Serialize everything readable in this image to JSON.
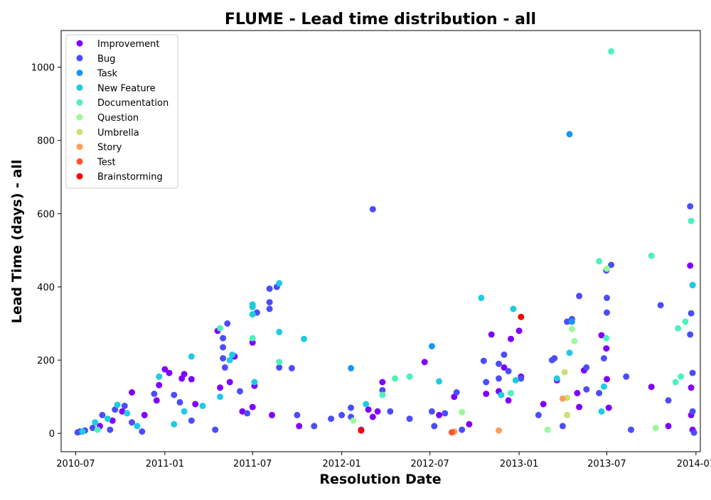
{
  "chart_data": {
    "type": "scatter",
    "title": "FLUME - Lead time distribution - all",
    "xlabel": "Resolution Date",
    "ylabel": "Lead Time (days) - all",
    "x_axis_type": "date",
    "xlim": [
      "2010-06-01",
      "2014-01-10"
    ],
    "ylim": [
      -50,
      1100
    ],
    "x_ticks": [
      "2010-07",
      "2011-01",
      "2011-07",
      "2012-01",
      "2012-07",
      "2013-01",
      "2013-07",
      "2014-01"
    ],
    "y_ticks": [
      0,
      200,
      400,
      600,
      800,
      1000
    ],
    "grid": false,
    "legend_position": "top-left",
    "series": [
      {
        "name": "Improvement",
        "color": "#8000ff",
        "points": [
          [
            "2010-07-10",
            5
          ],
          [
            "2010-08-20",
            20
          ],
          [
            "2010-09-15",
            35
          ],
          [
            "2010-10-05",
            60
          ],
          [
            "2010-10-25",
            112
          ],
          [
            "2010-11-20",
            50
          ],
          [
            "2010-12-15",
            90
          ],
          [
            "2010-12-20",
            132
          ],
          [
            "2011-01-01",
            175
          ],
          [
            "2011-01-10",
            165
          ],
          [
            "2011-02-05",
            150
          ],
          [
            "2011-02-10",
            162
          ],
          [
            "2011-02-25",
            148
          ],
          [
            "2011-03-05",
            80
          ],
          [
            "2011-04-20",
            280
          ],
          [
            "2011-04-25",
            125
          ],
          [
            "2011-05-15",
            140
          ],
          [
            "2011-05-25",
            210
          ],
          [
            "2011-06-10",
            60
          ],
          [
            "2011-07-01",
            248
          ],
          [
            "2011-07-01",
            72
          ],
          [
            "2011-07-05",
            130
          ],
          [
            "2011-08-10",
            50
          ],
          [
            "2011-10-05",
            20
          ],
          [
            "2012-02-25",
            65
          ],
          [
            "2012-03-05",
            45
          ],
          [
            "2012-03-15",
            60
          ],
          [
            "2012-03-25",
            140
          ],
          [
            "2012-06-20",
            195
          ],
          [
            "2012-07-20",
            50
          ],
          [
            "2012-08-20",
            100
          ],
          [
            "2012-09-20",
            25
          ],
          [
            "2012-10-25",
            108
          ],
          [
            "2012-11-05",
            270
          ],
          [
            "2012-11-20",
            115
          ],
          [
            "2012-12-01",
            180
          ],
          [
            "2012-12-10",
            90
          ],
          [
            "2012-12-15",
            258
          ],
          [
            "2013-01-01",
            280
          ],
          [
            "2013-01-05",
            155
          ],
          [
            "2013-02-20",
            80
          ],
          [
            "2013-03-20",
            145
          ],
          [
            "2013-05-01",
            110
          ],
          [
            "2013-05-05",
            72
          ],
          [
            "2013-05-15",
            172
          ],
          [
            "2013-06-20",
            268
          ],
          [
            "2013-06-30",
            232
          ],
          [
            "2013-07-01",
            148
          ],
          [
            "2013-07-05",
            70
          ],
          [
            "2013-10-01",
            127
          ],
          [
            "2013-11-05",
            20
          ],
          [
            "2013-12-20",
            458
          ],
          [
            "2013-12-22",
            125
          ],
          [
            "2013-12-22",
            50
          ],
          [
            "2013-12-25",
            10
          ]
        ]
      },
      {
        "name": "Bug",
        "color": "#4c4dfa",
        "points": [
          [
            "2010-07-05",
            3
          ],
          [
            "2010-07-20",
            8
          ],
          [
            "2010-08-05",
            15
          ],
          [
            "2010-08-25",
            50
          ],
          [
            "2010-09-10",
            10
          ],
          [
            "2010-09-20",
            65
          ],
          [
            "2010-10-10",
            75
          ],
          [
            "2010-10-25",
            30
          ],
          [
            "2010-11-15",
            5
          ],
          [
            "2010-12-10",
            108
          ],
          [
            "2011-01-20",
            105
          ],
          [
            "2011-02-01",
            85
          ],
          [
            "2011-02-25",
            35
          ],
          [
            "2011-04-15",
            10
          ],
          [
            "2011-05-01",
            205
          ],
          [
            "2011-05-01",
            235
          ],
          [
            "2011-05-01",
            260
          ],
          [
            "2011-05-05",
            180
          ],
          [
            "2011-05-10",
            300
          ],
          [
            "2011-06-05",
            115
          ],
          [
            "2011-06-20",
            55
          ],
          [
            "2011-07-10",
            330
          ],
          [
            "2011-08-05",
            395
          ],
          [
            "2011-08-05",
            340
          ],
          [
            "2011-08-05",
            358
          ],
          [
            "2011-08-20",
            400
          ],
          [
            "2011-08-25",
            180
          ],
          [
            "2011-09-20",
            178
          ],
          [
            "2011-10-01",
            50
          ],
          [
            "2011-11-05",
            20
          ],
          [
            "2011-12-10",
            40
          ],
          [
            "2012-01-01",
            50
          ],
          [
            "2012-01-20",
            70
          ],
          [
            "2012-01-20",
            45
          ],
          [
            "2012-02-10",
            10
          ],
          [
            "2012-03-05",
            612
          ],
          [
            "2012-03-25",
            118
          ],
          [
            "2012-04-10",
            60
          ],
          [
            "2012-05-20",
            40
          ],
          [
            "2012-07-05",
            60
          ],
          [
            "2012-07-10",
            20
          ],
          [
            "2012-08-01",
            55
          ],
          [
            "2012-08-25",
            112
          ],
          [
            "2012-09-05",
            10
          ],
          [
            "2012-10-20",
            198
          ],
          [
            "2012-10-25",
            140
          ],
          [
            "2012-11-20",
            150
          ],
          [
            "2012-11-20",
            190
          ],
          [
            "2012-12-01",
            215
          ],
          [
            "2012-12-10",
            170
          ],
          [
            "2013-01-05",
            150
          ],
          [
            "2013-02-10",
            50
          ],
          [
            "2013-03-10",
            200
          ],
          [
            "2013-03-15",
            205
          ],
          [
            "2013-04-01",
            20
          ],
          [
            "2013-04-10",
            305
          ],
          [
            "2013-04-20",
            312
          ],
          [
            "2013-05-05",
            375
          ],
          [
            "2013-05-20",
            180
          ],
          [
            "2013-05-20",
            120
          ],
          [
            "2013-06-15",
            110
          ],
          [
            "2013-06-25",
            205
          ],
          [
            "2013-06-30",
            445
          ],
          [
            "2013-07-01",
            370
          ],
          [
            "2013-07-01",
            330
          ],
          [
            "2013-07-10",
            460
          ],
          [
            "2013-08-10",
            155
          ],
          [
            "2013-08-20",
            10
          ],
          [
            "2013-10-20",
            350
          ],
          [
            "2013-11-05",
            90
          ],
          [
            "2013-12-20",
            620
          ],
          [
            "2013-12-20",
            270
          ],
          [
            "2013-12-22",
            328
          ],
          [
            "2013-12-25",
            165
          ],
          [
            "2013-12-25",
            405
          ],
          [
            "2013-12-25",
            60
          ],
          [
            "2013-12-28",
            2
          ]
        ]
      },
      {
        "name": "Task",
        "color": "#1996f3",
        "points": [
          [
            "2012-01-20",
            178
          ],
          [
            "2012-07-05",
            238
          ],
          [
            "2013-04-15",
            817
          ],
          [
            "2013-04-20",
            305
          ]
        ]
      },
      {
        "name": "New Feature",
        "color": "#1ecbe1",
        "points": [
          [
            "2010-07-15",
            5
          ],
          [
            "2010-08-10",
            30
          ],
          [
            "2010-09-05",
            40
          ],
          [
            "2010-09-25",
            78
          ],
          [
            "2010-10-15",
            55
          ],
          [
            "2010-11-05",
            20
          ],
          [
            "2010-12-20",
            155
          ],
          [
            "2011-01-20",
            25
          ],
          [
            "2011-02-10",
            60
          ],
          [
            "2011-02-25",
            210
          ],
          [
            "2011-03-20",
            75
          ],
          [
            "2011-04-25",
            100
          ],
          [
            "2011-05-15",
            200
          ],
          [
            "2011-05-20",
            215
          ],
          [
            "2011-07-01",
            345
          ],
          [
            "2011-07-01",
            352
          ],
          [
            "2011-07-01",
            325
          ],
          [
            "2011-07-05",
            140
          ],
          [
            "2011-08-25",
            410
          ],
          [
            "2011-08-25",
            277
          ],
          [
            "2011-10-15",
            258
          ],
          [
            "2012-02-20",
            80
          ],
          [
            "2012-07-20",
            142
          ],
          [
            "2012-10-15",
            370
          ],
          [
            "2012-11-25",
            105
          ],
          [
            "2012-12-20",
            340
          ],
          [
            "2012-12-25",
            145
          ],
          [
            "2013-03-20",
            150
          ],
          [
            "2013-04-15",
            220
          ],
          [
            "2013-06-20",
            60
          ],
          [
            "2013-06-25",
            128
          ],
          [
            "2013-12-25",
            405
          ]
        ]
      },
      {
        "name": "Documentation",
        "color": "#4df1c0",
        "points": [
          [
            "2010-08-15",
            10
          ],
          [
            "2011-04-25",
            287
          ],
          [
            "2011-07-01",
            260
          ],
          [
            "2011-08-25",
            195
          ],
          [
            "2012-03-25",
            105
          ],
          [
            "2012-04-20",
            150
          ],
          [
            "2012-05-20",
            155
          ],
          [
            "2012-12-15",
            110
          ],
          [
            "2013-06-15",
            470
          ],
          [
            "2013-06-30",
            260
          ],
          [
            "2013-07-10",
            1043
          ],
          [
            "2013-10-01",
            485
          ],
          [
            "2013-11-20",
            140
          ],
          [
            "2013-11-25",
            287
          ],
          [
            "2013-12-01",
            155
          ],
          [
            "2013-12-10",
            305
          ],
          [
            "2013-12-22",
            580
          ]
        ]
      },
      {
        "name": "Question",
        "color": "#99fa99",
        "points": [
          [
            "2012-01-25",
            35
          ],
          [
            "2012-09-05",
            58
          ],
          [
            "2013-03-01",
            10
          ],
          [
            "2013-04-20",
            285
          ],
          [
            "2013-04-25",
            252
          ],
          [
            "2013-07-01",
            450
          ],
          [
            "2013-10-10",
            15
          ]
        ]
      },
      {
        "name": "Umbrella",
        "color": "#cbe176",
        "points": [
          [
            "2013-04-05",
            167
          ],
          [
            "2013-04-10",
            97
          ],
          [
            "2013-04-10",
            50
          ]
        ]
      },
      {
        "name": "Story",
        "color": "#ff9e5a",
        "points": [
          [
            "2013-04-01",
            95
          ],
          [
            "2012-11-20",
            8
          ],
          [
            "2012-08-20",
            5
          ]
        ]
      },
      {
        "name": "Test",
        "color": "#ff5530",
        "points": [
          [
            "2012-08-15",
            3
          ]
        ]
      },
      {
        "name": "Brainstorming",
        "color": "#ff0000",
        "points": [
          [
            "2012-02-10",
            8
          ],
          [
            "2013-01-05",
            318
          ]
        ]
      }
    ]
  }
}
